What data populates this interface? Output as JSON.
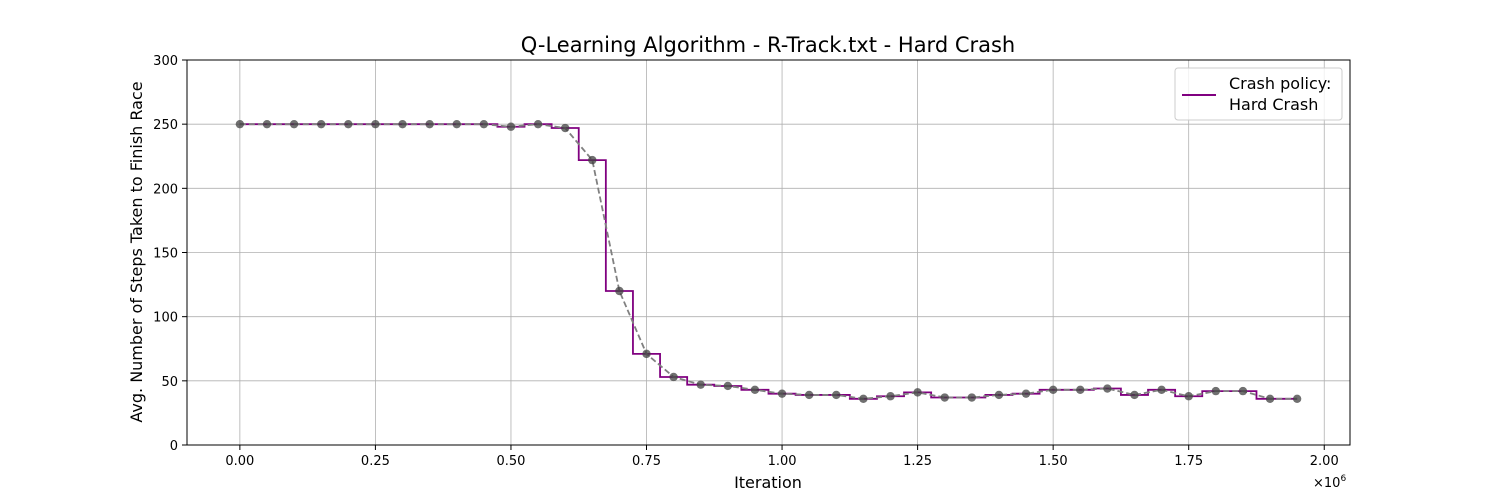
{
  "chart_data": {
    "type": "line",
    "title": "Q-Learning Algorithm - R-Track.txt - Hard Crash",
    "xlabel": "Iteration",
    "ylabel": "Avg. Number of Steps Taken to Finish Race",
    "x_scale_label": "×10",
    "x_scale_exponent": "6",
    "xlim": [
      -0.0975,
      2.0475
    ],
    "ylim": [
      0,
      300
    ],
    "x_ticks": [
      0,
      0.25,
      0.5,
      0.75,
      1.0,
      1.25,
      1.5,
      1.75,
      2.0
    ],
    "x_tick_labels": [
      "0.00",
      "0.25",
      "0.50",
      "0.75",
      "1.00",
      "1.25",
      "1.50",
      "1.75",
      "2.00"
    ],
    "y_ticks": [
      0,
      50,
      100,
      150,
      200,
      250,
      300
    ],
    "y_tick_labels": [
      "0",
      "50",
      "100",
      "150",
      "200",
      "250",
      "300"
    ],
    "grid": true,
    "legend_placement": "top-right",
    "x": [
      0,
      0.05,
      0.1,
      0.15,
      0.2,
      0.25,
      0.3,
      0.35,
      0.4,
      0.45,
      0.5,
      0.55,
      0.6,
      0.65,
      0.7,
      0.75,
      0.8,
      0.85,
      0.9,
      0.95,
      1.0,
      1.05,
      1.1,
      1.15,
      1.2,
      1.25,
      1.3,
      1.35,
      1.4,
      1.45,
      1.5,
      1.55,
      1.6,
      1.65,
      1.7,
      1.75,
      1.8,
      1.85,
      1.9,
      1.95
    ],
    "series": [
      {
        "name": "Crash policy:\nHard Crash",
        "legend_lines": [
          "Crash policy:",
          "Hard Crash"
        ],
        "style": "step",
        "color": "#800080",
        "values": [
          250,
          250,
          250,
          250,
          250,
          250,
          250,
          250,
          250,
          250,
          248,
          250,
          247,
          222,
          120,
          71,
          53,
          47,
          46,
          43,
          40,
          39,
          39,
          36,
          38,
          41,
          37,
          37,
          39,
          40,
          43,
          43,
          44,
          39,
          43,
          38,
          42,
          42,
          36,
          36
        ]
      },
      {
        "style": "dashed-markers",
        "color": "#808080",
        "marker_color": "#404040",
        "values": [
          250,
          250,
          250,
          250,
          250,
          250,
          250,
          250,
          250,
          250,
          248,
          250,
          247,
          222,
          120,
          71,
          53,
          47,
          46,
          43,
          40,
          39,
          39,
          36,
          38,
          41,
          37,
          37,
          39,
          40,
          43,
          43,
          44,
          39,
          43,
          38,
          42,
          42,
          36,
          36
        ]
      }
    ]
  }
}
